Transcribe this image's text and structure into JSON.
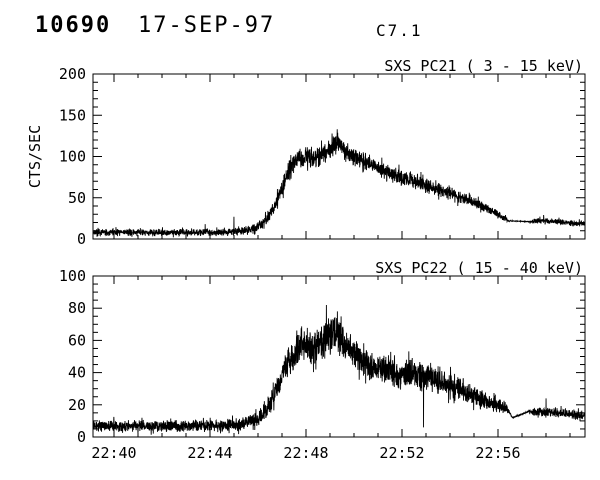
{
  "header": {
    "flare_number": "10690",
    "date": "17-SEP-97",
    "goes_class": "C7.1"
  },
  "colors": {
    "background": "#ffffff",
    "foreground": "#000000",
    "trace": "#000000"
  },
  "chart_data": [
    {
      "type": "line",
      "panel_id": "sxs-pc21-panel",
      "title": "SXS PC21  (  3 - 15 keV)",
      "ylabel": "CTS/SEC",
      "xlabel": "",
      "ylim": [
        0,
        200
      ],
      "ytick_interval": 50,
      "ytick_minor": 10,
      "yticks": [
        0,
        50,
        100,
        150,
        200
      ],
      "x_units": "minutes after 22:00 UT",
      "xlim": [
        39.125,
        59.625
      ],
      "xticks": [
        40,
        44,
        48,
        52,
        56
      ],
      "xtick_labels": [
        "22:40",
        "22:44",
        "22:48",
        "22:52",
        "22:56"
      ],
      "xtick_minor": 1,
      "show_xtick_labels": false,
      "grid": false,
      "legend": "none",
      "series": {
        "name": "count rate 3-15 keV",
        "mean_keypoints": [
          [
            39.1,
            8
          ],
          [
            44.3,
            8
          ],
          [
            45.2,
            9
          ],
          [
            45.8,
            12
          ],
          [
            46.3,
            22
          ],
          [
            46.7,
            40
          ],
          [
            47.0,
            62
          ],
          [
            47.3,
            85
          ],
          [
            47.6,
            97
          ],
          [
            48.0,
            100
          ],
          [
            48.4,
            97
          ],
          [
            48.8,
            104
          ],
          [
            49.1,
            112
          ],
          [
            49.35,
            118
          ],
          [
            49.6,
            108
          ],
          [
            50.0,
            100
          ],
          [
            50.5,
            93
          ],
          [
            51.0,
            86
          ],
          [
            51.5,
            80
          ],
          [
            52.0,
            75
          ],
          [
            52.5,
            70
          ],
          [
            53.0,
            65
          ],
          [
            53.5,
            60
          ],
          [
            54.0,
            55
          ],
          [
            54.5,
            50
          ],
          [
            55.0,
            44
          ],
          [
            55.5,
            38
          ],
          [
            56.0,
            30
          ],
          [
            56.3,
            25
          ],
          [
            56.45,
            22
          ],
          [
            57.3,
            21
          ],
          [
            57.8,
            22
          ],
          [
            58.5,
            21
          ],
          [
            59.6,
            18
          ]
        ],
        "noise_amp_keypoints": [
          [
            39.1,
            4
          ],
          [
            44.5,
            4
          ],
          [
            45.5,
            5
          ],
          [
            46.3,
            7
          ],
          [
            47.0,
            10
          ],
          [
            47.4,
            12
          ],
          [
            49.5,
            12
          ],
          [
            51.0,
            10
          ],
          [
            53.0,
            9
          ],
          [
            55.0,
            7
          ],
          [
            56.3,
            4
          ],
          [
            56.5,
            0.4
          ],
          [
            57.25,
            0.4
          ],
          [
            57.5,
            3.5
          ],
          [
            59.6,
            3.5
          ]
        ],
        "spikes": [
          [
            43.8,
            18
          ],
          [
            45.0,
            27
          ],
          [
            49.3,
            133
          ],
          [
            57.9,
            29
          ]
        ]
      }
    },
    {
      "type": "line",
      "panel_id": "sxs-pc22-panel",
      "title": "SXS PC22  ( 15 - 40 keV)",
      "ylabel": "",
      "xlabel": "",
      "ylim": [
        0,
        100
      ],
      "ytick_interval": 20,
      "ytick_minor": 5,
      "yticks": [
        0,
        20,
        40,
        60,
        80,
        100
      ],
      "x_units": "minutes after 22:00 UT",
      "xlim": [
        39.125,
        59.625
      ],
      "xticks": [
        40,
        44,
        48,
        52,
        56
      ],
      "xtick_labels": [
        "22:40",
        "22:44",
        "22:48",
        "22:52",
        "22:56"
      ],
      "xtick_minor": 1,
      "show_xtick_labels": true,
      "grid": false,
      "legend": "none",
      "series": {
        "name": "count rate 15-40 keV",
        "mean_keypoints": [
          [
            39.1,
            7
          ],
          [
            44.5,
            7
          ],
          [
            45.3,
            8
          ],
          [
            46.0,
            11
          ],
          [
            46.4,
            18
          ],
          [
            46.8,
            30
          ],
          [
            47.2,
            45
          ],
          [
            47.6,
            55
          ],
          [
            48.0,
            58
          ],
          [
            48.3,
            55
          ],
          [
            48.6,
            58
          ],
          [
            48.9,
            64
          ],
          [
            49.2,
            66
          ],
          [
            49.5,
            60
          ],
          [
            49.8,
            55
          ],
          [
            50.2,
            50
          ],
          [
            50.6,
            46
          ],
          [
            51.0,
            43
          ],
          [
            51.5,
            40
          ],
          [
            52.0,
            38
          ],
          [
            52.4,
            40
          ],
          [
            52.8,
            38
          ],
          [
            53.2,
            36
          ],
          [
            53.6,
            34
          ],
          [
            54.0,
            32
          ],
          [
            54.5,
            30
          ],
          [
            55.0,
            26
          ],
          [
            55.5,
            22
          ],
          [
            56.0,
            19
          ],
          [
            56.4,
            17
          ],
          [
            56.6,
            12
          ],
          [
            57.3,
            16
          ],
          [
            57.8,
            15
          ],
          [
            58.5,
            15
          ],
          [
            59.6,
            13
          ]
        ],
        "noise_amp_keypoints": [
          [
            39.1,
            3.5
          ],
          [
            44.5,
            3.5
          ],
          [
            45.5,
            4
          ],
          [
            46.5,
            6
          ],
          [
            47.2,
            9
          ],
          [
            47.6,
            11
          ],
          [
            49.3,
            11
          ],
          [
            50.0,
            10
          ],
          [
            51.0,
            9
          ],
          [
            52.5,
            9
          ],
          [
            54.0,
            8
          ],
          [
            55.5,
            6
          ],
          [
            56.3,
            4
          ],
          [
            56.55,
            0.4
          ],
          [
            57.25,
            0.4
          ],
          [
            57.5,
            3
          ],
          [
            59.6,
            3
          ]
        ],
        "spikes": [
          [
            48.85,
            82
          ],
          [
            52.9,
            6
          ],
          [
            58.0,
            24
          ]
        ]
      }
    }
  ],
  "render": {
    "samples_per_minute": 55,
    "seed": 7
  }
}
